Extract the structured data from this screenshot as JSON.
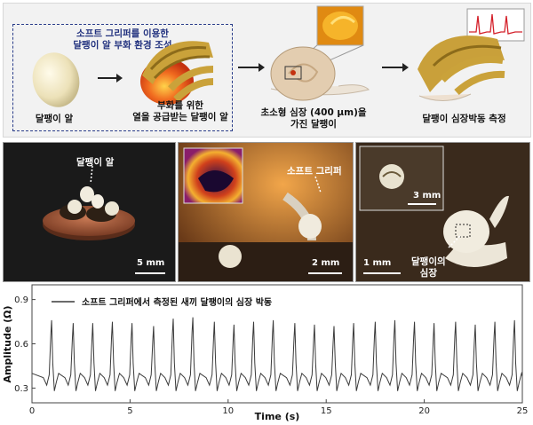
{
  "top": {
    "box_title_line1": "소프트 그리퍼를 이용한",
    "box_title_line2": "달팽이 알 부화 환경 조성",
    "step1": "달팽이 알",
    "step2_line1": "부화를 위한",
    "step2_line2": "열을 공급받는 달팽이 알",
    "step3_line1": "초소형 심장 (400 μm)을",
    "step3_line2": "가진 달팽이",
    "step4": "달팽이 심장박동 측정"
  },
  "photos": {
    "p1_label": "달팽이 알",
    "p1_scale": "5 mm",
    "p2_label": "소프트 그리퍼",
    "p2_scale": "2 mm",
    "p3_inset_scale": "3 mm",
    "p3_scale": "1 mm",
    "p3_label_line1": "달팽이의",
    "p3_label_line2": "심장"
  },
  "chart_data": {
    "type": "line",
    "legend": "소프트 그리퍼에서 측정된 새끼 달팽이의 심장 박동",
    "xlabel": "Time (s)",
    "ylabel": "Amplitude (Ω)",
    "xlim": [
      0,
      25
    ],
    "ylim": [
      0.2,
      1.0
    ],
    "xticks": [
      0,
      5,
      10,
      15,
      20,
      25
    ],
    "yticks": [
      0.3,
      0.6,
      0.9
    ],
    "beat_times": [
      1.0,
      2.1,
      3.1,
      4.1,
      5.1,
      6.2,
      7.2,
      8.2,
      9.3,
      10.3,
      11.3,
      12.3,
      13.4,
      14.4,
      15.4,
      16.4,
      17.5,
      18.5,
      19.5,
      20.5,
      21.6,
      22.6,
      23.6,
      24.6
    ],
    "beat_peaks": [
      0.76,
      0.74,
      0.74,
      0.75,
      0.74,
      0.72,
      0.77,
      0.78,
      0.75,
      0.73,
      0.75,
      0.76,
      0.74,
      0.73,
      0.72,
      0.74,
      0.75,
      0.76,
      0.75,
      0.74,
      0.75,
      0.73,
      0.75,
      0.76
    ],
    "baseline": 0.35,
    "trough": 0.22
  },
  "colors": {
    "dash_border": "#2a3d8a",
    "trace": "#3a3a3a"
  }
}
